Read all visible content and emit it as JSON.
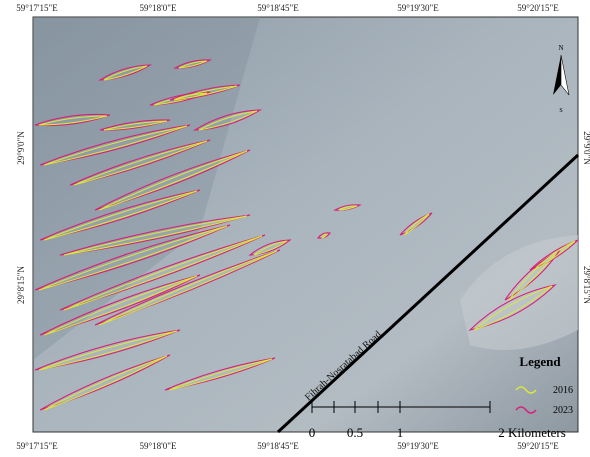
{
  "map": {
    "top_labels": [
      "59°17'15\"E",
      "59°18'0\"E",
      "59°18'45\"E",
      "59°19'30\"E",
      "59°20'15\"E"
    ],
    "bottom_labels": [
      "59°17'15\"E",
      "59°18'0\"E",
      "59°18'45\"E",
      "59°19'30\"E",
      "59°20'15\"E"
    ],
    "left_labels": [
      "29°9'0\"N",
      "29°8'15\"N"
    ],
    "right_labels": [
      "29°9'0\"N",
      "29°8'15\"N"
    ],
    "road_label": "Fihrah-Nosratabad Road",
    "north_arrow": {
      "north": "N",
      "south": "S"
    },
    "legend": {
      "title": "Legend",
      "items": [
        {
          "label": "2016",
          "color": "#d9e83a"
        },
        {
          "label": "2023",
          "color": "#d6207a"
        }
      ]
    },
    "scale_bar": {
      "labels": [
        "0",
        "0.5",
        "1",
        "2 Kilometers"
      ]
    }
  }
}
